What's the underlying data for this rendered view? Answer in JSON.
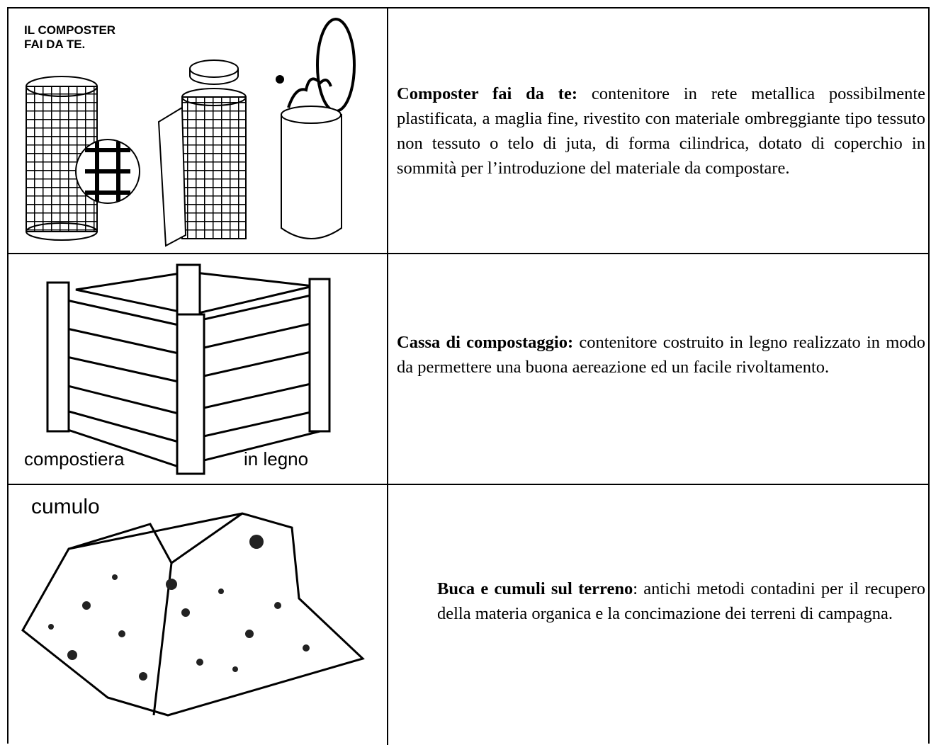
{
  "table": {
    "rows": [
      {
        "image": {
          "caption": [
            "IL COMPOSTER",
            "FAI DA TE."
          ]
        },
        "term": "Composter fai da te:",
        "description": " contenitore in rete metallica possibilmente plastificata, a maglia fine, rivestito con materiale ombreggiante tipo tessuto non tessuto o telo di juta, di forma cilindrica, dotato di coperchio in sommità per l’introduzione del materiale da compostare."
      },
      {
        "image": {
          "caption": [
            "compostiera",
            "in legno"
          ]
        },
        "term": "Cassa di compostaggio:",
        "description": " contenitore costruito in legno realizzato in modo da permettere una buona aereazione ed un facile rivoltamento."
      },
      {
        "image": {
          "caption": [
            "cumulo"
          ]
        },
        "term": "Buca e cumuli sul terreno",
        "description": ": antichi metodi contadini per il recupero della materia organica e la concimazione dei terreni di campagna."
      }
    ]
  }
}
